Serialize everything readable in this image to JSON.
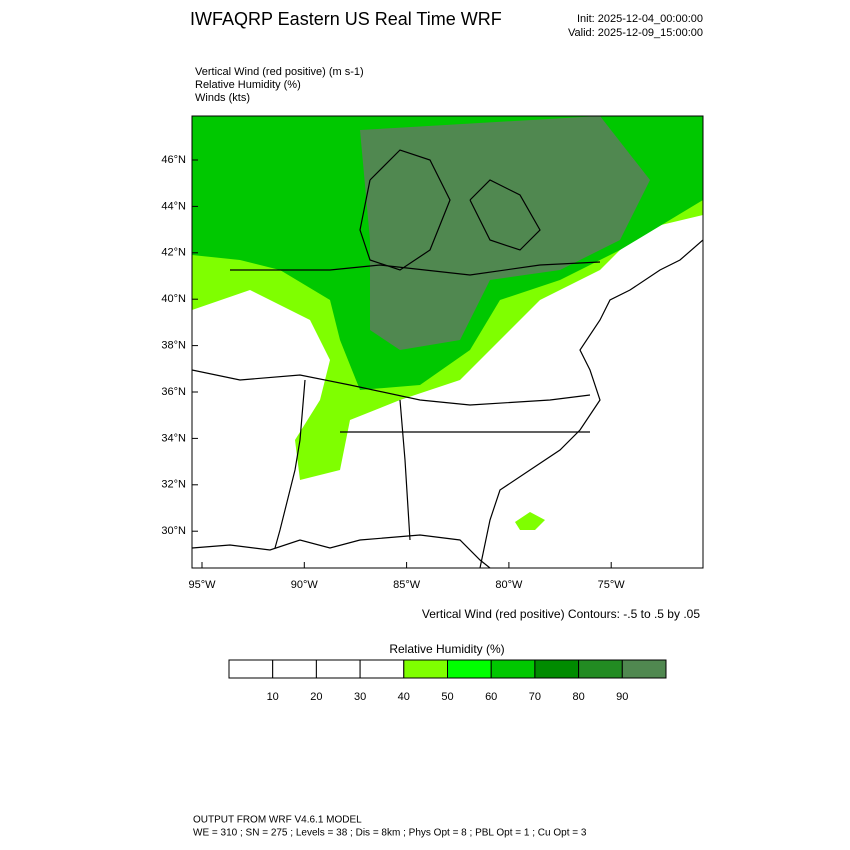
{
  "header": {
    "title": "IWFAQRP Eastern US Real Time WRF",
    "init": "Init: 2025-12-04_00:00:00",
    "valid": "Valid: 2025-12-09_15:00:00"
  },
  "fields": [
    "Vertical Wind (red positive)   (m s-1)",
    "Relative Humidity   (%)",
    "Winds   (kts)"
  ],
  "map": {
    "lat_labels": [
      "46°N",
      "44°N",
      "42°N",
      "40°N",
      "38°N",
      "36°N",
      "34°N",
      "32°N",
      "30°N"
    ],
    "lon_labels": [
      "95°W",
      "90°W",
      "85°W",
      "80°W",
      "75°W"
    ],
    "contour_note": "Vertical Wind (red positive) Contours: -.5 to .5 by .05"
  },
  "colorbar": {
    "title": "Relative Humidity   (%)",
    "colors": [
      "#ffffff",
      "#ffffff",
      "#ffffff",
      "#ffffff",
      "#7fff00",
      "#00ff00",
      "#00c800",
      "#008b00",
      "#228b22",
      "#508850"
    ],
    "ticks": [
      10,
      20,
      30,
      40,
      50,
      60,
      70,
      80,
      90
    ]
  },
  "footer": {
    "line1": "OUTPUT FROM WRF V4.6.1 MODEL",
    "line2": "WE = 310 ; SN = 275 ; Levels = 38 ; Dis = 8km ; Phys Opt = 8 ; PBL Opt = 1 ; Cu Opt = 3"
  }
}
